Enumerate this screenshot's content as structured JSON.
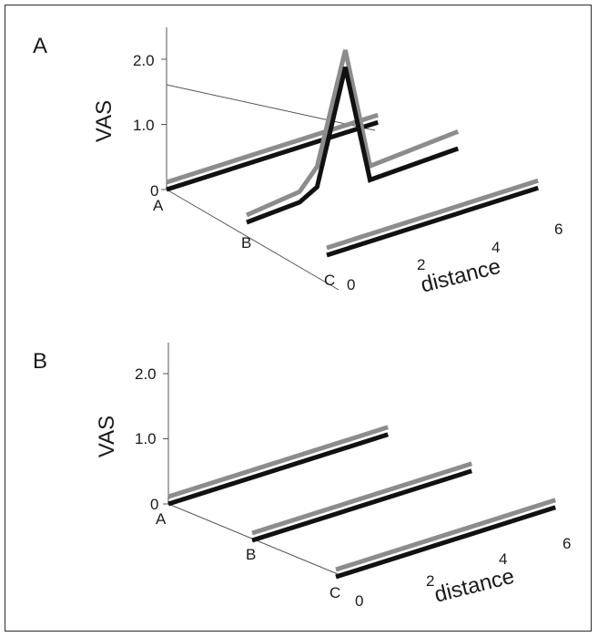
{
  "chart_data": [
    {
      "type": "line",
      "panel_label": "A",
      "ylabel": "VAS",
      "xlabel": "distance",
      "ylim": [
        0,
        2.0
      ],
      "yticks": [
        "0",
        "1.0",
        "2.0"
      ],
      "xticks": [
        "0",
        "2",
        "4",
        "6"
      ],
      "rows": [
        "A",
        "B",
        "C"
      ],
      "series_colors": {
        "gray": "#8c8c8c",
        "black": "#111111"
      },
      "lines": [
        {
          "row": "A",
          "gray": {
            "x": [
              0,
              6
            ],
            "y": [
              0,
              0
            ]
          },
          "black": {
            "x": [
              0,
              6
            ],
            "y": [
              0,
              0
            ]
          }
        },
        {
          "row": "B",
          "gray": {
            "x": [
              0,
              1.5,
              2,
              2.8,
              3.5,
              6
            ],
            "y": [
              0,
              0.1,
              0.4,
              2.05,
              0.15,
              0.25
            ]
          },
          "black": {
            "x": [
              0,
              1.5,
              2,
              2.8,
              3.5,
              6
            ],
            "y": [
              0,
              0.05,
              0.2,
              1.9,
              0.05,
              0.1
            ]
          }
        },
        {
          "row": "C",
          "gray": {
            "x": [
              0,
              6
            ],
            "y": [
              0,
              0
            ]
          },
          "black": {
            "x": [
              0,
              6
            ],
            "y": [
              0,
              0
            ]
          }
        }
      ]
    },
    {
      "type": "line",
      "panel_label": "B",
      "ylabel": "VAS",
      "xlabel": "distance",
      "ylim": [
        0,
        2.0
      ],
      "yticks": [
        "0",
        "1.0",
        "2.0"
      ],
      "xticks": [
        "0",
        "2",
        "4",
        "6"
      ],
      "rows": [
        "A",
        "B",
        "C"
      ],
      "series_colors": {
        "gray": "#8c8c8c",
        "black": "#111111"
      },
      "lines": [
        {
          "row": "A",
          "gray": {
            "x": [
              0,
              6
            ],
            "y": [
              0,
              0
            ]
          },
          "black": {
            "x": [
              0,
              6
            ],
            "y": [
              0,
              0
            ]
          }
        },
        {
          "row": "B",
          "gray": {
            "x": [
              0,
              6
            ],
            "y": [
              0,
              0
            ]
          },
          "black": {
            "x": [
              0,
              6
            ],
            "y": [
              0,
              0
            ]
          }
        },
        {
          "row": "C",
          "gray": {
            "x": [
              0,
              6
            ],
            "y": [
              0,
              0
            ]
          },
          "black": {
            "x": [
              0,
              6
            ],
            "y": [
              0,
              0
            ]
          }
        }
      ]
    }
  ]
}
